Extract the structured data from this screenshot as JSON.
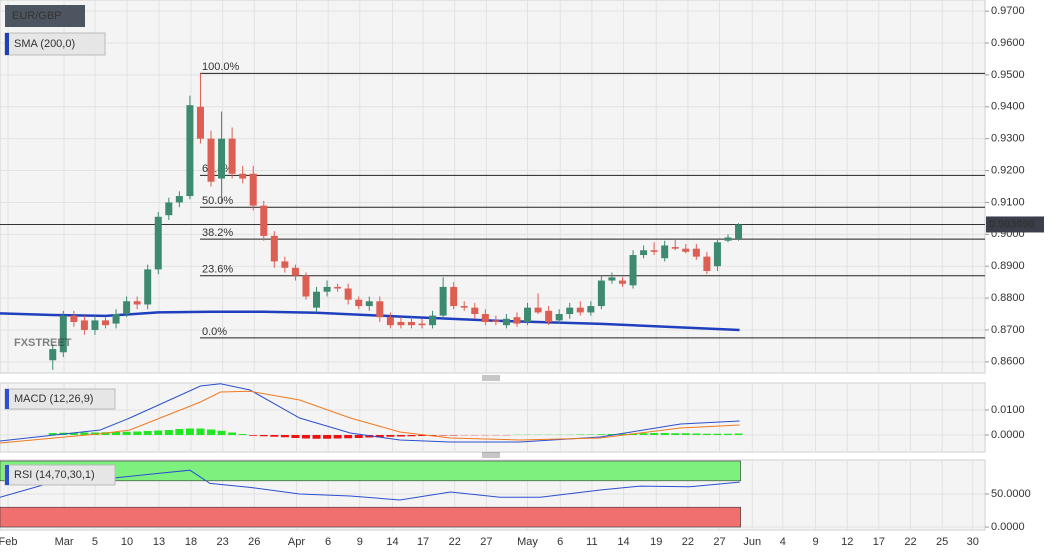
{
  "chart_data": [
    {
      "type": "candlestick",
      "title": "EUR/GBP",
      "logo": "FXSTREET",
      "up_color": "#3d8a70",
      "down_color": "#dd5e52",
      "xlim": [
        -5,
        88.36
      ],
      "xticks": [
        {
          "value": -4.24,
          "label": "Feb"
        },
        {
          "value": 1.07,
          "label": "Mar"
        },
        {
          "value": 4.0,
          "label": "5"
        },
        {
          "value": 7.04,
          "label": "10"
        },
        {
          "value": 10.07,
          "label": "13"
        },
        {
          "value": 13.1,
          "label": "18"
        },
        {
          "value": 16.1,
          "label": "23"
        },
        {
          "value": 19.1,
          "label": "26"
        },
        {
          "value": 23.1,
          "label": "Apr"
        },
        {
          "value": 26.1,
          "label": "6"
        },
        {
          "value": 29.1,
          "label": "9"
        },
        {
          "value": 32.2,
          "label": "14"
        },
        {
          "value": 35.1,
          "label": "17"
        },
        {
          "value": 38.1,
          "label": "22"
        },
        {
          "value": 41.1,
          "label": "27"
        },
        {
          "value": 45.0,
          "label": "May"
        },
        {
          "value": 48.1,
          "label": "6"
        },
        {
          "value": 51.1,
          "label": "11"
        },
        {
          "value": 54.1,
          "label": "14"
        },
        {
          "value": 57.2,
          "label": "19"
        },
        {
          "value": 60.2,
          "label": "22"
        },
        {
          "value": 63.2,
          "label": "27"
        },
        {
          "value": 66.3,
          "label": "Jun"
        },
        {
          "value": 69.2,
          "label": "4"
        },
        {
          "value": 72.3,
          "label": "9"
        },
        {
          "value": 75.3,
          "label": "12"
        },
        {
          "value": 78.3,
          "label": "17"
        },
        {
          "value": 81.3,
          "label": "22"
        },
        {
          "value": 84.3,
          "label": "25"
        },
        {
          "value": 87.2,
          "label": "30"
        }
      ],
      "ylim": [
        0.8565,
        0.9735
      ],
      "yticks": [
        {
          "value": 0.97,
          "label": "0.9700"
        },
        {
          "value": 0.96,
          "label": "0.9600"
        },
        {
          "value": 0.95,
          "label": "0.9500"
        },
        {
          "value": 0.94,
          "label": "0.9400"
        },
        {
          "value": 0.93,
          "label": "0.9300"
        },
        {
          "value": 0.92,
          "label": "0.9200"
        },
        {
          "value": 0.91,
          "label": "0.9100"
        },
        {
          "value": 0.9,
          "label": "0.9000"
        },
        {
          "value": 0.89,
          "label": "0.8900"
        },
        {
          "value": 0.88,
          "label": "0.8800"
        },
        {
          "value": 0.87,
          "label": "0.8700"
        },
        {
          "value": 0.86,
          "label": "0.8600"
        }
      ],
      "grid": true,
      "open": [
        0.8605,
        0.863,
        0.8745,
        0.873,
        0.87,
        0.873,
        0.872,
        0.875,
        0.879,
        0.878,
        0.889,
        0.906,
        0.91,
        0.912,
        0.94,
        0.93,
        0.9175,
        0.93,
        0.919,
        0.919,
        0.909,
        0.8995,
        0.8915,
        0.8895,
        0.887,
        0.877,
        0.882,
        0.8835,
        0.883,
        0.8795,
        0.8775,
        0.879,
        0.874,
        0.8725,
        0.8725,
        0.872,
        0.8715,
        0.8745,
        0.8835,
        0.8775,
        0.877,
        0.875,
        0.873,
        0.8715,
        0.874,
        0.8725,
        0.877,
        0.876,
        0.873,
        0.875,
        0.877,
        0.8755,
        0.8775,
        0.8855,
        0.8855,
        0.884,
        0.8935,
        0.895,
        0.8925,
        0.896,
        0.8955,
        0.8955,
        0.893,
        0.89,
        0.898,
        0.8985
      ],
      "high": [
        0.8655,
        0.876,
        0.876,
        0.8745,
        0.8745,
        0.874,
        0.8765,
        0.8805,
        0.8805,
        0.8905,
        0.907,
        0.9115,
        0.9135,
        0.9435,
        0.9505,
        0.9325,
        0.9385,
        0.9335,
        0.9215,
        0.9215,
        0.9105,
        0.901,
        0.893,
        0.8905,
        0.888,
        0.8835,
        0.8855,
        0.8845,
        0.8845,
        0.8805,
        0.8805,
        0.8805,
        0.8755,
        0.874,
        0.874,
        0.8735,
        0.876,
        0.8865,
        0.885,
        0.879,
        0.8785,
        0.8765,
        0.8745,
        0.875,
        0.8755,
        0.8785,
        0.8815,
        0.8775,
        0.8765,
        0.8785,
        0.879,
        0.879,
        0.887,
        0.888,
        0.8865,
        0.895,
        0.8965,
        0.8975,
        0.898,
        0.8985,
        0.897,
        0.897,
        0.8945,
        0.8985,
        0.9,
        0.9035
      ],
      "low": [
        0.8575,
        0.8615,
        0.871,
        0.8685,
        0.8685,
        0.8705,
        0.8705,
        0.874,
        0.8765,
        0.8765,
        0.8875,
        0.9045,
        0.9085,
        0.911,
        0.9285,
        0.915,
        0.91,
        0.9175,
        0.916,
        0.9075,
        0.898,
        0.8895,
        0.888,
        0.8855,
        0.8795,
        0.8755,
        0.8805,
        0.882,
        0.878,
        0.8765,
        0.876,
        0.8725,
        0.8705,
        0.8705,
        0.8705,
        0.8705,
        0.8705,
        0.8735,
        0.8765,
        0.876,
        0.8735,
        0.8715,
        0.8715,
        0.8705,
        0.871,
        0.8715,
        0.875,
        0.8715,
        0.872,
        0.8735,
        0.8745,
        0.8745,
        0.8765,
        0.8845,
        0.8835,
        0.883,
        0.8925,
        0.8935,
        0.8915,
        0.895,
        0.894,
        0.892,
        0.8875,
        0.8885,
        0.8975,
        0.898
      ],
      "close": [
        0.864,
        0.8745,
        0.8725,
        0.87,
        0.873,
        0.8715,
        0.875,
        0.879,
        0.878,
        0.889,
        0.9055,
        0.91,
        0.912,
        0.9405,
        0.93,
        0.9165,
        0.93,
        0.919,
        0.9175,
        0.909,
        0.8995,
        0.8915,
        0.8895,
        0.887,
        0.8805,
        0.882,
        0.8835,
        0.883,
        0.8795,
        0.8775,
        0.879,
        0.874,
        0.8715,
        0.8715,
        0.8715,
        0.8715,
        0.8745,
        0.8835,
        0.8775,
        0.877,
        0.875,
        0.8725,
        0.8725,
        0.8735,
        0.872,
        0.877,
        0.8755,
        0.8725,
        0.875,
        0.877,
        0.8755,
        0.8775,
        0.8855,
        0.8865,
        0.8845,
        0.8935,
        0.895,
        0.8945,
        0.8965,
        0.8955,
        0.8945,
        0.893,
        0.8885,
        0.8975,
        0.899,
        0.90309
      ],
      "series": [
        {
          "name": "SMA (200,0)",
          "color": "#1f3fbf",
          "x": [
            -5,
            0,
            5,
            10,
            15,
            20,
            25,
            33,
            42,
            52,
            65.1
          ],
          "values": [
            0.8752,
            0.8747,
            0.8744,
            0.8755,
            0.8757,
            0.8757,
            0.8754,
            0.8742,
            0.8729,
            0.8719,
            0.87
          ]
        }
      ],
      "fib_levels": [
        {
          "value": 0.9505,
          "label": "100.0%"
        },
        {
          "value": 0.9185,
          "label": "61.8%"
        },
        {
          "value": 0.9085,
          "label": "50.0%"
        },
        {
          "value": 0.8985,
          "label": "38.2%"
        },
        {
          "value": 0.887,
          "label": "23.6%"
        },
        {
          "value": 0.8675,
          "label": "0.0%"
        }
      ],
      "current_price": {
        "value": 0.90309,
        "label": "0.903090"
      }
    },
    {
      "type": "macd",
      "title": "MACD (12,26,9)",
      "ylim": [
        -0.0068,
        0.0208
      ],
      "yticks": [
        {
          "value": 0.01,
          "label": "0.0100"
        },
        {
          "value": 0,
          "label": "0.0000"
        }
      ],
      "grid": true,
      "series": [
        {
          "color": "#2b4fd0",
          "x": [
            -5,
            4.5,
            7.3,
            14,
            15.9,
            18.7,
            23.4,
            28.2,
            32.9,
            37.7,
            44.3,
            51.9,
            59.5,
            65.1
          ],
          "values": [
            -0.0024,
            0.002,
            0.0068,
            0.0196,
            0.0205,
            0.018,
            0.0068,
            0.0008,
            -0.002,
            -0.0028,
            -0.0028,
            -0.0008,
            0.0044,
            0.0056
          ]
        },
        {
          "color": "#f07a20",
          "x": [
            -5,
            4.5,
            7.3,
            14,
            15.9,
            18.7,
            23.4,
            28.2,
            32.9,
            37.7,
            44.3,
            51.9,
            59.5,
            65.1
          ],
          "values": [
            -0.0032,
            0.0005,
            0.002,
            0.0132,
            0.0172,
            0.0175,
            0.014,
            0.0068,
            0.0012,
            -0.0012,
            -0.002,
            -0.0012,
            0.0028,
            0.004
          ]
        }
      ],
      "histogram": {
        "up_color": "#22e622",
        "down_color": "#ee1111",
        "values": [
          0.0008,
          0.0009,
          0.0009,
          0.001,
          0.001,
          0.0011,
          0.0012,
          0.0013,
          0.0014,
          0.0016,
          0.0018,
          0.002,
          0.0024,
          0.0026,
          0.0026,
          0.0022,
          0.0017,
          0.001,
          0.0004,
          -0.0003,
          -0.0005,
          -0.0007,
          -0.0009,
          -0.0012,
          -0.0014,
          -0.0015,
          -0.0015,
          -0.0014,
          -0.0013,
          -0.0012,
          -0.001,
          -0.0009,
          -0.0007,
          -0.0006,
          -0.0005,
          -0.0004,
          -0.0003,
          -0.0002,
          -0.0002,
          -0.0001,
          -0.0001,
          -0.0001,
          -0.0001,
          -0.0001,
          0.0001,
          0.0001,
          0.0001,
          0.0001,
          0.0001,
          0.0001,
          0.0002,
          0.0002,
          0.0003,
          0.0004,
          0.0005,
          0.0006,
          0.0007,
          0.0008,
          0.0008,
          0.0007,
          0.0007,
          0.0006,
          0.0005,
          0.0005,
          0.0005,
          0.0006
        ]
      }
    },
    {
      "type": "rsi",
      "title": "RSI (14,70,30,1)",
      "ylim": [
        -4.5,
        101.5
      ],
      "yticks": [
        {
          "value": 50,
          "label": "50.0000"
        },
        {
          "value": 0,
          "label": "0.0000"
        }
      ],
      "grid": true,
      "overbought": 70,
      "oversold": 30,
      "zone_colors": [
        "#7ef07e",
        "#f07070"
      ],
      "series": [
        {
          "color": "#2b4fd0",
          "x": [
            -5,
            0.7,
            4.5,
            9.2,
            13,
            14.9,
            18.7,
            23.4,
            28.2,
            32.9,
            37.7,
            42.4,
            46.2,
            51.9,
            55.7,
            60.4,
            65.1
          ],
          "values": [
            45,
            71,
            72,
            80,
            86,
            66,
            60,
            50,
            47,
            41,
            53,
            45,
            45,
            56,
            62,
            61,
            68
          ]
        }
      ]
    }
  ]
}
